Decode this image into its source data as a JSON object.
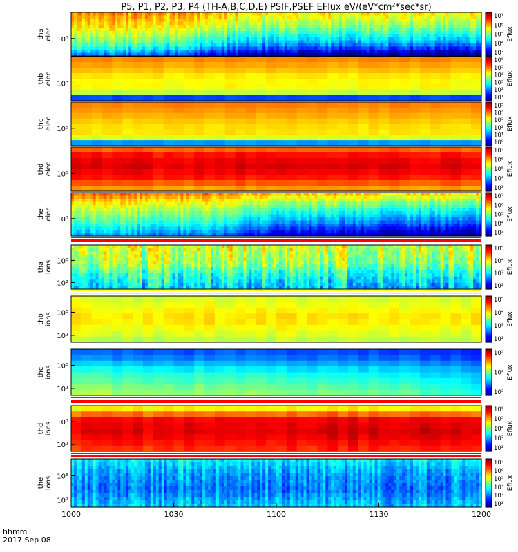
{
  "title": "P5, P1, P2, P3, P4 (TH-A,B,C,D,E) PSIF,PSEF EFlux eV/(eV*cm²*sec*sr)",
  "chart_data": {
    "type": "heatmap",
    "time_axis": {
      "date": "2017 Sep 08",
      "format_label": "hhmm",
      "tick_labels": [
        "1000",
        "1030",
        "1100",
        "1130",
        "1200"
      ]
    },
    "colorbar_label": "Eflux",
    "panels": [
      {
        "id": "tha_elec",
        "label": [
          "tha",
          "elec"
        ],
        "ytick": "10⁵",
        "cbar_ticks": [
          "10⁷",
          "10⁶",
          "10⁵",
          "10⁴",
          "10³"
        ],
        "log_range": [
          2.5,
          7.3
        ],
        "profile": [
          [
            0,
            3.5
          ],
          [
            0.25,
            4.6
          ],
          [
            0.5,
            5.2
          ],
          [
            0.7,
            5.6
          ],
          [
            1,
            6.0
          ]
        ],
        "trend": [
          [
            0,
            0.1
          ],
          [
            0.2,
            0
          ],
          [
            0.3,
            -0.4
          ],
          [
            0.45,
            -0.9
          ],
          [
            1,
            -1.1
          ]
        ],
        "noise": 0.6,
        "coarse": false
      },
      {
        "id": "thb_elec",
        "label": [
          "thb",
          "elec"
        ],
        "ytick": "10⁵",
        "cbar_ticks": [
          "10⁶",
          "10⁵",
          "10⁴",
          "10³",
          "10²",
          "10¹"
        ],
        "log_range": [
          1,
          6.3
        ],
        "profile": [
          [
            0,
            1.8
          ],
          [
            0.12,
            2.2
          ],
          [
            0.2,
            4.3
          ],
          [
            0.5,
            4.3
          ],
          [
            0.75,
            4.7
          ],
          [
            1,
            5.0
          ]
        ],
        "trend": [
          [
            0,
            0
          ],
          [
            1,
            0
          ]
        ],
        "noise": 0.15,
        "coarse": true
      },
      {
        "id": "thc_elec",
        "label": [
          "thc",
          "elec"
        ],
        "ytick": "10⁵",
        "cbar_ticks": [
          "10⁵",
          "10⁴",
          "10³",
          "10²",
          "10¹",
          "10⁰"
        ],
        "log_range": [
          0,
          5.3
        ],
        "profile": [
          [
            0,
            1.3
          ],
          [
            0.12,
            1.6
          ],
          [
            0.2,
            3.4
          ],
          [
            0.5,
            3.5
          ],
          [
            0.75,
            3.8
          ],
          [
            1,
            4.0
          ]
        ],
        "trend": [
          [
            0,
            0
          ],
          [
            1,
            0
          ]
        ],
        "noise": 0.15,
        "coarse": true
      },
      {
        "id": "thd_elec",
        "label": [
          "thd",
          "elec"
        ],
        "ytick": "10⁵",
        "cbar_ticks": [
          "10⁷",
          "10⁶",
          "10⁵",
          "10⁴",
          "10³"
        ],
        "log_range": [
          2.5,
          7.3
        ],
        "profile": [
          [
            0,
            5.8
          ],
          [
            0.3,
            6.6
          ],
          [
            0.6,
            6.9
          ],
          [
            0.85,
            6.6
          ],
          [
            1,
            6.0
          ]
        ],
        "trend": [
          [
            0,
            0
          ],
          [
            1,
            0
          ]
        ],
        "noise": 0.2,
        "coarse": true
      },
      {
        "id": "the_elec",
        "label": [
          "the",
          "elec"
        ],
        "ytick": "10⁵",
        "cbar_ticks": [
          "10⁷",
          "10⁶",
          "10⁵",
          "10⁴",
          "10³"
        ],
        "log_range": [
          2.5,
          7.3
        ],
        "profile": [
          [
            0,
            3.8
          ],
          [
            0.3,
            4.6
          ],
          [
            0.6,
            5.2
          ],
          [
            0.85,
            5.8
          ],
          [
            1,
            6.3
          ]
        ],
        "trend": [
          [
            0,
            0
          ],
          [
            0.35,
            -0.2
          ],
          [
            0.5,
            -1.0
          ],
          [
            1,
            -1.3
          ]
        ],
        "noise": 0.5,
        "coarse": false
      },
      {
        "id": "tha_ions",
        "label": [
          "tha",
          "ions"
        ],
        "ytick_hi": "10⁵",
        "ytick_lo": "10²",
        "cbar_ticks": [
          "10⁵",
          "10⁴",
          "10³",
          "10²"
        ],
        "log_range": [
          1.8,
          5.6
        ],
        "profile": [
          [
            0,
            3.1
          ],
          [
            0.35,
            3.5
          ],
          [
            0.6,
            3.9
          ],
          [
            1,
            4.1
          ]
        ],
        "trend": [
          [
            0,
            0
          ],
          [
            1,
            -0.2
          ]
        ],
        "noise": 0.8,
        "coarse": false
      },
      {
        "id": "thb_ions",
        "label": [
          "thb",
          "ions"
        ],
        "ytick_hi": "10⁵",
        "ytick_lo": "10²",
        "cbar_ticks": [
          "10⁵",
          "10⁴",
          "10³",
          "10²"
        ],
        "log_range": [
          1.8,
          5.6
        ],
        "profile": [
          [
            0,
            3.9
          ],
          [
            0.5,
            4.3
          ],
          [
            1,
            4.0
          ]
        ],
        "trend": [
          [
            0,
            0
          ],
          [
            1,
            0
          ]
        ],
        "noise": 0.18,
        "coarse": true
      },
      {
        "id": "thc_ions",
        "label": [
          "thc",
          "ions"
        ],
        "ytick_hi": "10⁵",
        "ytick_lo": "10²",
        "cbar_ticks": [
          "10⁵",
          "10⁴",
          "10³"
        ],
        "log_range": [
          2.2,
          5.6
        ],
        "profile": [
          [
            0,
            4.1
          ],
          [
            0.5,
            3.6
          ],
          [
            0.8,
            3.1
          ],
          [
            1,
            2.9
          ]
        ],
        "trend": [
          [
            0,
            0
          ],
          [
            0.8,
            -0.2
          ],
          [
            1,
            -0.5
          ]
        ],
        "noise": 0.15,
        "coarse": true
      },
      {
        "id": "thd_ions",
        "label": [
          "thd",
          "ions"
        ],
        "ytick_hi": "10⁵",
        "ytick_lo": "10²",
        "cbar_ticks": [
          "10⁶",
          "10⁵",
          "10⁴",
          "10³",
          "10²"
        ],
        "log_range": [
          1.5,
          6.7
        ],
        "profile": [
          [
            0,
            5.6
          ],
          [
            0.4,
            6.1
          ],
          [
            0.7,
            6.0
          ],
          [
            1,
            4.4
          ]
        ],
        "trend": [
          [
            0,
            0
          ],
          [
            0.4,
            0.2
          ],
          [
            1,
            0.3
          ]
        ],
        "noise": 0.25,
        "coarse": true
      },
      {
        "id": "the_ions",
        "label": [
          "the",
          "ions"
        ],
        "ytick_hi": "10⁵",
        "ytick_lo": "10²",
        "cbar_ticks": [
          "10⁷",
          "10⁶",
          "10⁵",
          "10⁴",
          "10³",
          "10²"
        ],
        "log_range": [
          1.7,
          7.2
        ],
        "profile": [
          [
            0,
            3.6
          ],
          [
            0.35,
            3.1
          ],
          [
            0.7,
            3.3
          ],
          [
            1,
            3.8
          ]
        ],
        "trend": [
          [
            0,
            0
          ],
          [
            1,
            -0.1
          ]
        ],
        "noise": 0.8,
        "coarse": false
      }
    ]
  }
}
